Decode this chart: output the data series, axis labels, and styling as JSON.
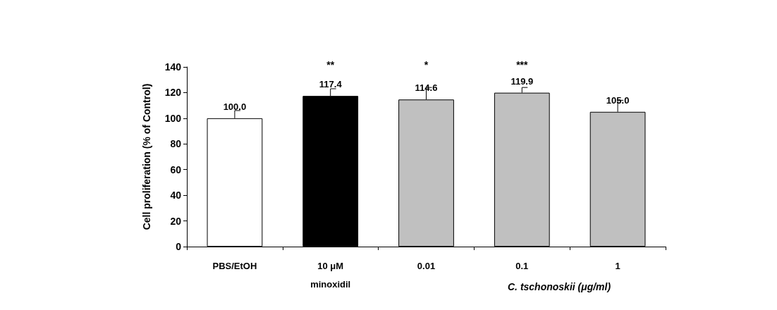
{
  "chart_data": {
    "type": "bar",
    "ylabel": "Cell proliferation (% of Control)",
    "xlabel": "C. tschonoskii (μg/ml)",
    "categories": [
      "PBS/EtOH",
      "10 μM\nminoxidil",
      "0.01",
      "0.1",
      "1"
    ],
    "values": [
      100.0,
      117.4,
      114.6,
      119.9,
      105.0
    ],
    "colors": [
      "#ffffff",
      "#000000",
      "#c0c0c0",
      "#c0c0c0",
      "#c0c0c0"
    ],
    "errors": [
      [
        100,
        106
      ],
      [
        117.4,
        123
      ],
      [
        114.6,
        124
      ],
      [
        119.9,
        124
      ],
      [
        105,
        114
      ]
    ],
    "value_labels": [
      "100.0",
      "117.4",
      "114.6",
      "119.9",
      "105.0"
    ],
    "annotations": [
      "**",
      "*",
      "***"
    ],
    "ylim": [
      0,
      140
    ],
    "yticks": [
      0,
      20,
      40,
      60,
      80,
      100,
      120,
      140
    ],
    "grid": false
  }
}
